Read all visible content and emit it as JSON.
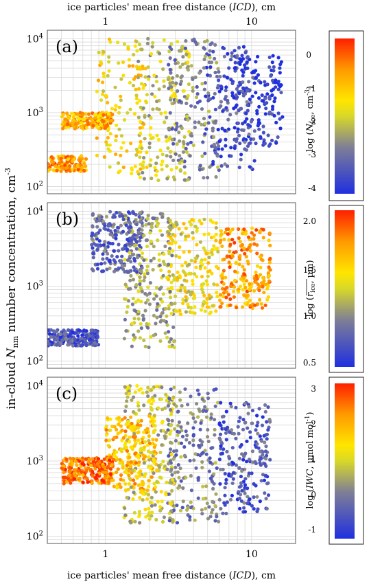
{
  "figure": {
    "top_axis_label": "ice particles' mean free distance (ICD), cm",
    "bottom_axis_label": "ice particles' mean free distance (ICD), cm",
    "y_axis_label": "in-cloud N_nm number concentration, cm^-3"
  },
  "chart_data": [
    {
      "panel": "(a)",
      "type": "scatter",
      "x_scale": "log",
      "y_scale": "log",
      "xlim": [
        0.4,
        20
      ],
      "ylim": [
        80,
        13000
      ],
      "x_ticks": [
        1,
        10
      ],
      "y_ticks": [
        100,
        1000,
        10000
      ],
      "color_by": "log(N_ice, cm^-3)",
      "colorbar": {
        "label": "log (N_ice, cm^-3)",
        "range": [
          -4.2,
          0.5
        ],
        "ticks": [
          "-4",
          "-3",
          "-2",
          "-1",
          "0"
        ],
        "colors": [
          "#1f2fe0",
          "#7f7f96",
          "#d8d82a",
          "#ffe600",
          "#ff9a00",
          "#ff1f00"
        ]
      },
      "clusters": [
        {
          "x": 0.5,
          "y_range": [
            160,
            260
          ],
          "value": -0.5
        },
        {
          "x": 0.75,
          "y_range": [
            600,
            1000
          ],
          "value": -0.7
        },
        {
          "x": 1.3,
          "y_range": [
            150,
            10000
          ],
          "value": -1.3
        },
        {
          "x": 2.5,
          "y_range": [
            120,
            10000
          ],
          "value": -2.0
        },
        {
          "x": 4.0,
          "y_range": [
            120,
            10000
          ],
          "value": -2.8
        },
        {
          "x": 7.0,
          "y_range": [
            170,
            8000
          ],
          "value": -3.5
        },
        {
          "x": 11.0,
          "y_range": [
            350,
            6000
          ],
          "value": -4.0
        }
      ]
    },
    {
      "panel": "(b)",
      "type": "scatter",
      "x_scale": "log",
      "y_scale": "log",
      "xlim": [
        0.4,
        20
      ],
      "ylim": [
        80,
        13000
      ],
      "x_ticks": [
        1,
        10
      ],
      "y_ticks": [
        100,
        1000,
        10000
      ],
      "color_by": "log(r_ice, µm)",
      "colorbar": {
        "label": "log (r_ice, µm)",
        "range": [
          0.45,
          2.15
        ],
        "ticks": [
          "0.5",
          "1.0",
          "1.5",
          "2.0"
        ],
        "colors": [
          "#1f2fe0",
          "#7f7f96",
          "#d8d82a",
          "#ffe600",
          "#ff9a00",
          "#ff1f00"
        ]
      },
      "clusters": [
        {
          "x": 0.6,
          "y_range": [
            160,
            260
          ],
          "value": 0.7
        },
        {
          "x": 1.2,
          "y_range": [
            1500,
            10000
          ],
          "value": 0.8
        },
        {
          "x": 2.0,
          "y_range": [
            150,
            10000
          ],
          "value": 1.1
        },
        {
          "x": 4.0,
          "y_range": [
            400,
            8000
          ],
          "value": 1.4
        },
        {
          "x": 9.0,
          "y_range": [
            500,
            6000
          ],
          "value": 1.8
        }
      ]
    },
    {
      "panel": "(c)",
      "type": "scatter",
      "x_scale": "log",
      "y_scale": "log",
      "xlim": [
        0.4,
        20
      ],
      "ylim": [
        80,
        13000
      ],
      "x_ticks": [
        1,
        10
      ],
      "y_ticks": [
        100,
        1000,
        10000
      ],
      "color_by": "log(IWC, µmol mol^-1)",
      "colorbar": {
        "label": "log (IWC, µmol mol-1)",
        "range": [
          -1.3,
          3.1
        ],
        "ticks": [
          "-1",
          "0",
          "1",
          "2",
          "3"
        ],
        "colors": [
          "#1f2fe0",
          "#7f7f96",
          "#d8d82a",
          "#ffe600",
          "#ff9a00",
          "#ff1f00"
        ]
      },
      "clusters": [
        {
          "x": 0.75,
          "y_range": [
            500,
            1100
          ],
          "value": 2.5
        },
        {
          "x": 1.5,
          "y_range": [
            400,
            4000
          ],
          "value": 1.8
        },
        {
          "x": 2.0,
          "y_range": [
            150,
            10000
          ],
          "value": 0.8
        },
        {
          "x": 4.0,
          "y_range": [
            150,
            10000
          ],
          "value": 0.0
        },
        {
          "x": 9.0,
          "y_range": [
            200,
            6000
          ],
          "value": -0.6
        }
      ]
    }
  ]
}
